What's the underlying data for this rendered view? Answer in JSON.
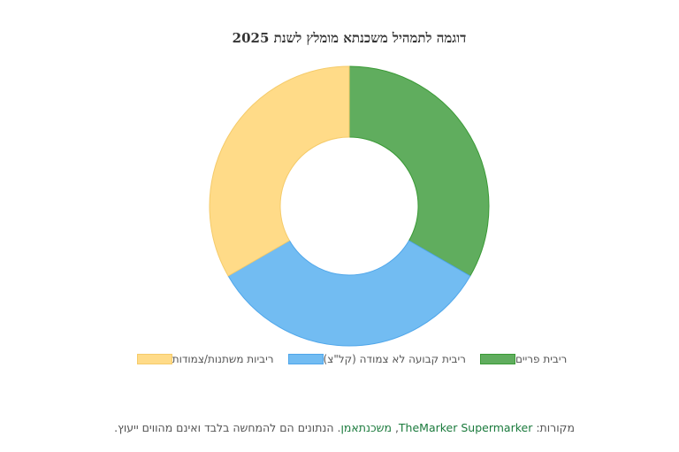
{
  "chart_data": {
    "type": "pie",
    "donut": true,
    "title": "דוגמה לתמהיל משכנתא מומלץ לשנת 2025",
    "categories": [
      "ריבית פריים",
      "ריבית קבועה לא צמודה (קל\"צ)",
      "ריביות משתנות/צמודות"
    ],
    "values": [
      33.3,
      33.3,
      33.3
    ],
    "colors": [
      "#60AD5E",
      "#72BCF2",
      "#FFDB88"
    ],
    "borders": [
      "#3A9A36",
      "#4FA6EA",
      "#F5CB6A"
    ],
    "legend_position": "bottom"
  },
  "source": {
    "prefix": "מקורות: ",
    "link1": "TheMarker Supermarker",
    "separator": ", ",
    "link2": "משכנתאמן",
    "suffix": ". הנתונים הם להמחשה בלבד ואינם מהווים ייעוץ."
  }
}
